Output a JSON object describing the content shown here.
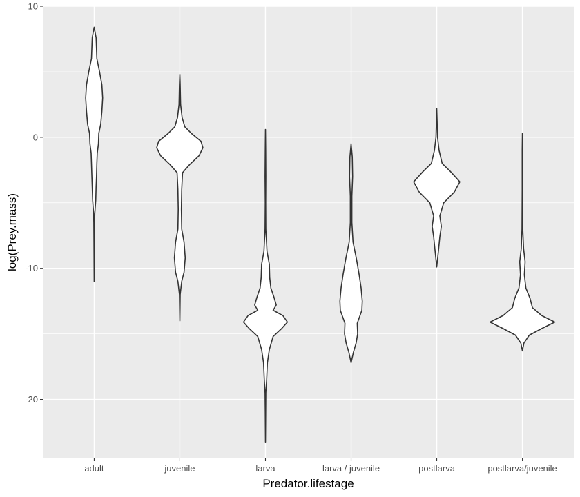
{
  "chart_data": {
    "type": "violin",
    "xlabel": "Predator.lifestage",
    "ylabel": "log(Prey.mass)",
    "ylim": [
      -24.5,
      10
    ],
    "yticks": [
      10,
      0,
      -10,
      -20
    ],
    "ytick_labels": [
      "10",
      "0",
      "-10",
      "-20"
    ],
    "grid": true,
    "background": "#ebebeb",
    "grid_color": "#ffffff",
    "outline_color": "#333333",
    "fill_color": "#ffffff",
    "categories": [
      "adult",
      "juvenile",
      "larva",
      "larva / juvenile",
      "postlarva",
      "postlarva/juvenile"
    ],
    "violins": [
      {
        "category": "adult",
        "range": [
          -11.0,
          8.4
        ],
        "profile": [
          [
            8.4,
            0.0
          ],
          [
            7.6,
            0.05
          ],
          [
            6.0,
            0.07
          ],
          [
            5.0,
            0.14
          ],
          [
            4.0,
            0.2
          ],
          [
            3.0,
            0.22
          ],
          [
            2.0,
            0.2
          ],
          [
            1.0,
            0.17
          ],
          [
            0.3,
            0.12
          ],
          [
            -0.5,
            0.11
          ],
          [
            -1.2,
            0.08
          ],
          [
            -2.0,
            0.07
          ],
          [
            -3.0,
            0.06
          ],
          [
            -3.8,
            0.05
          ],
          [
            -4.8,
            0.04
          ],
          [
            -5.8,
            0.015
          ],
          [
            -6.5,
            0.01
          ],
          [
            -8.0,
            0.005
          ],
          [
            -11.0,
            0.0
          ]
        ]
      },
      {
        "category": "juvenile",
        "range": [
          -14.0,
          4.8
        ],
        "profile": [
          [
            4.8,
            0.0
          ],
          [
            4.0,
            0.01
          ],
          [
            2.5,
            0.02
          ],
          [
            1.5,
            0.06
          ],
          [
            0.8,
            0.13
          ],
          [
            0.3,
            0.3
          ],
          [
            -0.3,
            0.55
          ],
          [
            -0.8,
            0.6
          ],
          [
            -1.4,
            0.5
          ],
          [
            -2.1,
            0.25
          ],
          [
            -2.7,
            0.07
          ],
          [
            -4.0,
            0.05
          ],
          [
            -5.5,
            0.04
          ],
          [
            -7.0,
            0.05
          ],
          [
            -8.0,
            0.11
          ],
          [
            -9.2,
            0.14
          ],
          [
            -10.3,
            0.11
          ],
          [
            -11.0,
            0.05
          ],
          [
            -12.0,
            0.01
          ],
          [
            -14.0,
            0.0
          ]
        ]
      },
      {
        "category": "larva",
        "range": [
          -23.3,
          0.6
        ],
        "profile": [
          [
            0.6,
            0.0
          ],
          [
            -1.0,
            0.005
          ],
          [
            -3.0,
            0.01
          ],
          [
            -5.0,
            0.005
          ],
          [
            -7.0,
            0.01
          ],
          [
            -8.7,
            0.04
          ],
          [
            -9.7,
            0.1
          ],
          [
            -10.7,
            0.11
          ],
          [
            -11.5,
            0.14
          ],
          [
            -12.2,
            0.22
          ],
          [
            -12.8,
            0.28
          ],
          [
            -13.2,
            0.2
          ],
          [
            -13.6,
            0.45
          ],
          [
            -14.1,
            0.57
          ],
          [
            -14.6,
            0.42
          ],
          [
            -15.2,
            0.2
          ],
          [
            -16.2,
            0.1
          ],
          [
            -17.2,
            0.05
          ],
          [
            -18.5,
            0.03
          ],
          [
            -19.5,
            0.01
          ],
          [
            -21.0,
            0.005
          ],
          [
            -23.3,
            0.0
          ]
        ]
      },
      {
        "category": "larva / juvenile",
        "range": [
          -17.2,
          -0.5
        ],
        "profile": [
          [
            -0.5,
            0.0
          ],
          [
            -1.5,
            0.03
          ],
          [
            -3.0,
            0.04
          ],
          [
            -4.5,
            0.02
          ],
          [
            -6.5,
            0.02
          ],
          [
            -8.0,
            0.05
          ],
          [
            -9.3,
            0.14
          ],
          [
            -10.5,
            0.21
          ],
          [
            -11.5,
            0.26
          ],
          [
            -12.5,
            0.29
          ],
          [
            -13.2,
            0.28
          ],
          [
            -14.2,
            0.16
          ],
          [
            -15.0,
            0.17
          ],
          [
            -15.7,
            0.13
          ],
          [
            -16.4,
            0.06
          ],
          [
            -17.2,
            0.0
          ]
        ]
      },
      {
        "category": "postlarva",
        "range": [
          -9.9,
          2.2
        ],
        "profile": [
          [
            2.2,
            0.0
          ],
          [
            1.2,
            0.01
          ],
          [
            0.0,
            0.02
          ],
          [
            -1.0,
            0.06
          ],
          [
            -2.0,
            0.14
          ],
          [
            -2.6,
            0.35
          ],
          [
            -3.4,
            0.6
          ],
          [
            -4.2,
            0.45
          ],
          [
            -5.0,
            0.18
          ],
          [
            -6.0,
            0.08
          ],
          [
            -6.8,
            0.12
          ],
          [
            -7.6,
            0.08
          ],
          [
            -8.5,
            0.05
          ],
          [
            -9.9,
            0.0
          ]
        ]
      },
      {
        "category": "postlarva/juvenile",
        "range": [
          -16.3,
          0.3
        ],
        "profile": [
          [
            0.3,
            0.0
          ],
          [
            -1.0,
            0.005
          ],
          [
            -4.0,
            0.005
          ],
          [
            -7.0,
            0.01
          ],
          [
            -8.5,
            0.03
          ],
          [
            -9.5,
            0.07
          ],
          [
            -10.5,
            0.05
          ],
          [
            -11.5,
            0.09
          ],
          [
            -12.3,
            0.2
          ],
          [
            -13.0,
            0.26
          ],
          [
            -13.6,
            0.5
          ],
          [
            -14.1,
            0.84
          ],
          [
            -14.6,
            0.5
          ],
          [
            -15.1,
            0.18
          ],
          [
            -15.7,
            0.04
          ],
          [
            -16.3,
            0.0
          ]
        ]
      }
    ]
  }
}
